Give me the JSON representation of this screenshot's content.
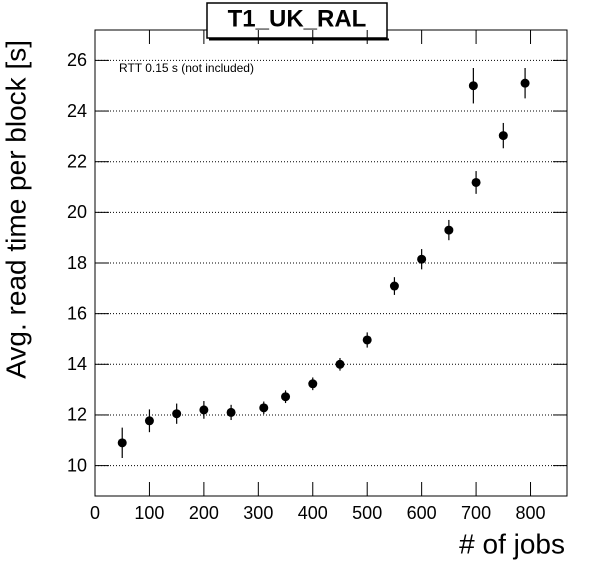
{
  "chart_data": {
    "type": "scatter",
    "title": "T1_UK_RAL",
    "annotation": "RTT 0.15 s (not included)",
    "x_label": "# of jobs",
    "y_label": "Avg. read time per block [s]",
    "series": [
      {
        "name": "T1_UK_RAL",
        "color": "#000000",
        "x": [
          50,
          100,
          150,
          200,
          250,
          310,
          350,
          400,
          450,
          500,
          550,
          600,
          650,
          700,
          695,
          750,
          790
        ],
        "values": [
          10.9,
          11.77,
          12.05,
          12.2,
          12.1,
          12.28,
          12.72,
          13.23,
          14.0,
          14.96,
          17.09,
          18.15,
          19.3,
          21.18,
          25.0,
          23.03,
          25.1
        ],
        "errors": [
          0.6,
          0.45,
          0.4,
          0.35,
          0.3,
          0.25,
          0.25,
          0.25,
          0.25,
          0.3,
          0.35,
          0.4,
          0.4,
          0.45,
          0.7,
          0.5,
          0.6
        ]
      }
    ],
    "xlim": [
      0,
      867
    ],
    "ylim": [
      8.8,
      27.2
    ],
    "xticks": [
      0,
      100,
      200,
      300,
      400,
      500,
      600,
      700,
      800
    ],
    "yticks": [
      10,
      12,
      14,
      16,
      18,
      20,
      22,
      24,
      26
    ],
    "grid": true
  }
}
